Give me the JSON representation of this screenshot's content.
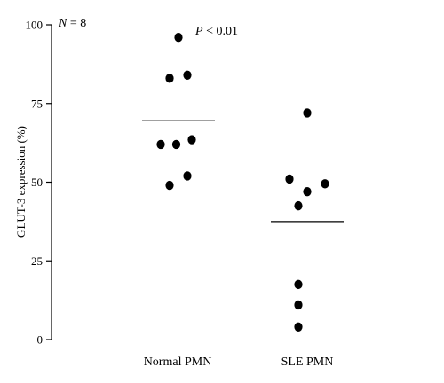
{
  "chart_data": {
    "type": "scatter",
    "title": "",
    "ylabel": "GLUT-3 expression (%)",
    "xlabel": "",
    "ylim": [
      0,
      100
    ],
    "yticks": [
      0,
      25,
      50,
      75,
      100
    ],
    "grid": false,
    "categories": [
      "Normal PMN",
      "SLE PMN"
    ],
    "series": [
      {
        "category": "Normal PMN",
        "points": [
          {
            "offset": 0.0,
            "y": 96
          },
          {
            "offset": -0.2,
            "y": 83
          },
          {
            "offset": 0.2,
            "y": 84
          },
          {
            "offset": -0.4,
            "y": 62
          },
          {
            "offset": -0.05,
            "y": 62
          },
          {
            "offset": 0.3,
            "y": 63.5
          },
          {
            "offset": -0.2,
            "y": 49
          },
          {
            "offset": 0.2,
            "y": 52
          }
        ],
        "mean": 69.5
      },
      {
        "category": "SLE PMN",
        "points": [
          {
            "offset": 0.0,
            "y": 72
          },
          {
            "offset": -0.4,
            "y": 51
          },
          {
            "offset": 0.0,
            "y": 47
          },
          {
            "offset": 0.4,
            "y": 49.5
          },
          {
            "offset": -0.2,
            "y": 42.5
          },
          {
            "offset": -0.2,
            "y": 17.5
          },
          {
            "offset": -0.2,
            "y": 11
          },
          {
            "offset": -0.2,
            "y": 4
          }
        ],
        "mean": 37.5
      }
    ],
    "annotations": {
      "n_label": "N = 8",
      "p_label": "P < 0.01"
    }
  }
}
